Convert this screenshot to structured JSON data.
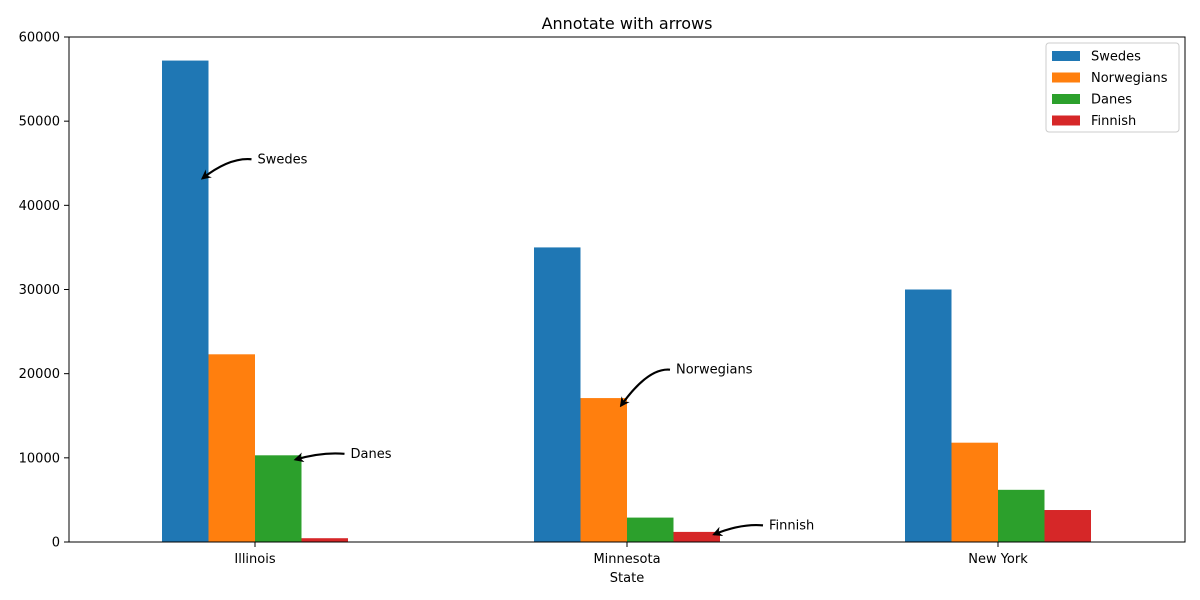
{
  "chart_data": {
    "type": "bar",
    "title": "Annotate with arrows",
    "xlabel": "State",
    "ylabel": "",
    "categories": [
      "Illinois",
      "Minnesota",
      "New York"
    ],
    "series": [
      {
        "name": "Swedes",
        "color": "#1f77b4",
        "values": [
          57200,
          35000,
          30000
        ]
      },
      {
        "name": "Norwegians",
        "color": "#ff7f0e",
        "values": [
          22300,
          17100,
          11800
        ]
      },
      {
        "name": "Danes",
        "color": "#2ca02c",
        "values": [
          10300,
          2900,
          6200
        ]
      },
      {
        "name": "Finnish",
        "color": "#d62728",
        "values": [
          450,
          1200,
          3800
        ]
      }
    ],
    "ylim": [
      0,
      60000
    ],
    "yticks": [
      0,
      10000,
      20000,
      30000,
      40000,
      50000,
      60000
    ],
    "grid": false,
    "legend": "top-right",
    "annotations": [
      {
        "text": "Swedes",
        "category": "Illinois",
        "series": "Swedes",
        "point_y": 43200,
        "text_y": 45000
      },
      {
        "text": "Danes",
        "category": "Illinois",
        "series": "Danes",
        "point_y": 9800,
        "text_y": 10000
      },
      {
        "text": "Norwegians",
        "category": "Minnesota",
        "series": "Norwegians",
        "point_y": 16200,
        "text_y": 20000
      },
      {
        "text": "Finnish",
        "category": "Minnesota",
        "series": "Finnish",
        "point_y": 900,
        "text_y": 1500
      }
    ]
  }
}
